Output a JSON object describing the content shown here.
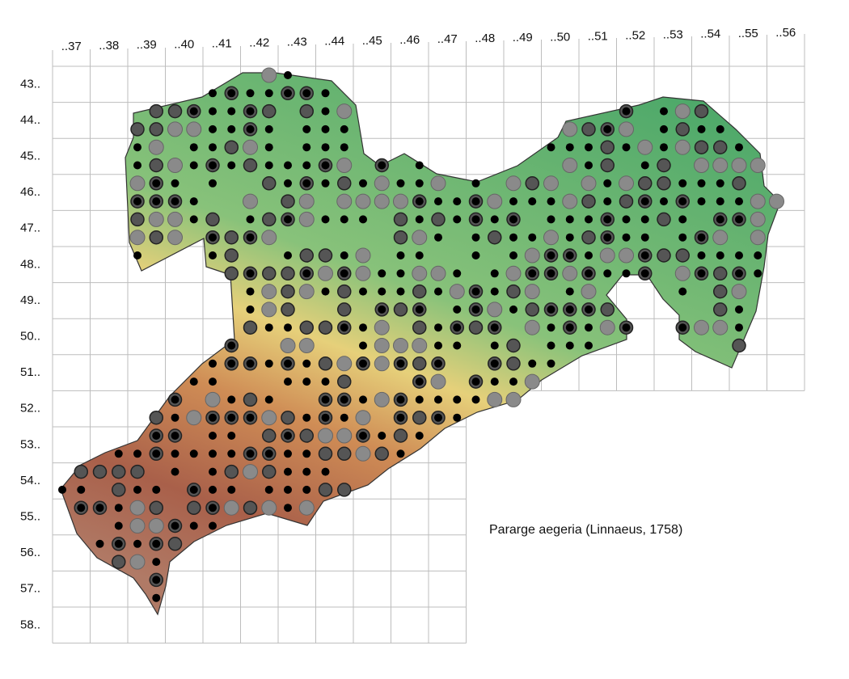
{
  "column_labels": [
    "..37",
    "..38",
    "..39",
    "..40",
    "..41",
    "..42",
    "..43",
    "..44",
    "..45",
    "..46",
    "..47",
    "..48",
    "..49",
    "..50",
    "..51",
    "..52",
    "..53",
    "..54",
    "..55",
    "..56"
  ],
  "row_labels": [
    "43..",
    "44..",
    "45..",
    "46..",
    "47..",
    "48..",
    "49..",
    "50..",
    "51..",
    "52..",
    "53..",
    "54..",
    "55..",
    "56..",
    "57..",
    "58.."
  ],
  "species": "Pararge aegeria (Linnaeus, 1758)"
}
